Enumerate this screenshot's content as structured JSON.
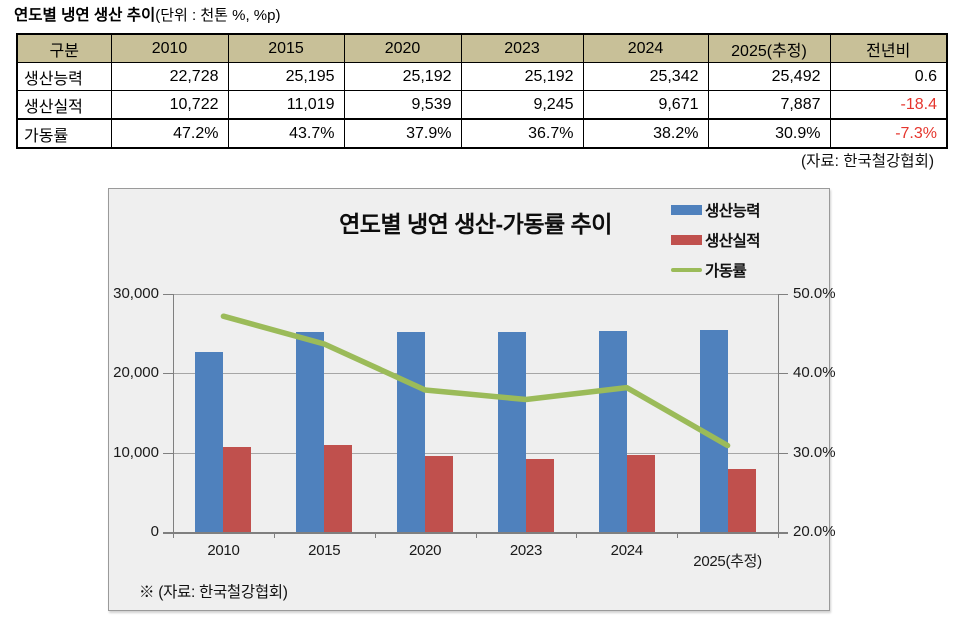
{
  "page": {
    "title_bold": "연도별 냉연 생산 추이",
    "title_unit": "(단위 : 천톤 %, %p)",
    "table_source": "(자료: 한국철강협회)"
  },
  "table": {
    "header": [
      "구분",
      "2010",
      "2015",
      "2020",
      "2023",
      "2024",
      "2025(추정)",
      "전년비"
    ],
    "rows": [
      {
        "label": "생산능력",
        "values": [
          "22,728",
          "25,195",
          "25,192",
          "25,192",
          "25,342",
          "25,492"
        ],
        "yoy": "0.6",
        "yoy_negative": false
      },
      {
        "label": "생산실적",
        "values": [
          "10,722",
          "11,019",
          "9,539",
          "9,245",
          "9,671",
          "7,887"
        ],
        "yoy": "-18.4",
        "yoy_negative": true
      },
      {
        "label": "가동률",
        "values": [
          "47.2%",
          "43.7%",
          "37.9%",
          "36.7%",
          "38.2%",
          "30.9%"
        ],
        "yoy": "-7.3%",
        "yoy_negative": true
      }
    ]
  },
  "chart_data": {
    "type": "bar",
    "title": "연도별 냉연 생산-가동률 추이",
    "categories": [
      "2010",
      "2015",
      "2020",
      "2023",
      "2024",
      "2025(추정)"
    ],
    "series": [
      {
        "name": "생산능력",
        "kind": "bar",
        "axis": "left",
        "color": "#4F81BD",
        "values": [
          22728,
          25195,
          25192,
          25192,
          25342,
          25492
        ]
      },
      {
        "name": "생산실적",
        "kind": "bar",
        "axis": "left",
        "color": "#C0504D",
        "values": [
          10722,
          11019,
          9539,
          9245,
          9671,
          7887
        ]
      },
      {
        "name": "가동률",
        "kind": "line",
        "axis": "right",
        "color": "#9BBB59",
        "values": [
          47.2,
          43.7,
          37.9,
          36.7,
          38.2,
          30.9
        ]
      }
    ],
    "left_axis": {
      "min": 0,
      "max": 30000,
      "tick_values": [
        0,
        10000,
        20000,
        30000
      ],
      "tick_labels": [
        "0",
        "10,000",
        "20,000",
        "30,000"
      ]
    },
    "right_axis": {
      "min": 20,
      "max": 50,
      "tick_values": [
        20,
        30,
        40,
        50
      ],
      "tick_labels": [
        "20.0%",
        "30.0%",
        "40.0%",
        "50.0%"
      ]
    },
    "legend_position": "top-right",
    "grid": true,
    "source_note": "※ (자료: 한국철강협회)"
  },
  "colors": {
    "bar_capacity": "#4F81BD",
    "bar_output": "#C0504D",
    "line_utilization": "#9BBB59",
    "table_header_bg": "#C8C098",
    "negative_value": "#e5352d",
    "chart_bg": "#efefef",
    "gridline": "#a6a6a6"
  }
}
